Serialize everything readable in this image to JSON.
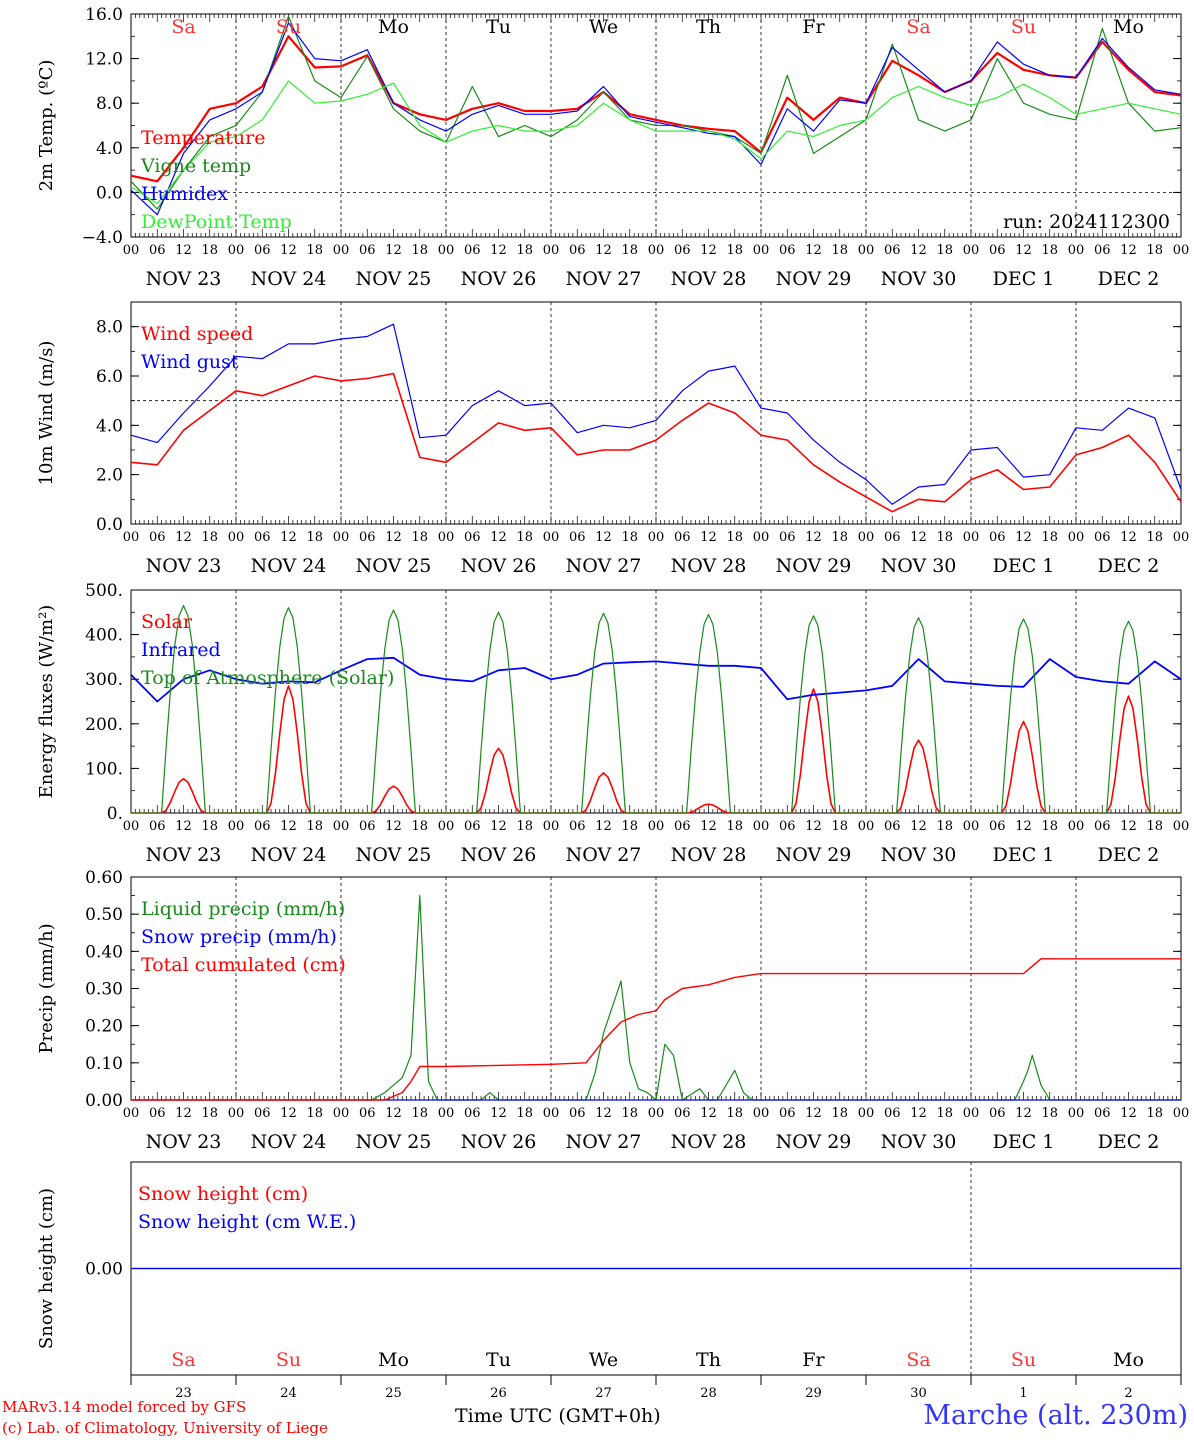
{
  "run_label": "run: 2024112300",
  "credit_line1": "MARv3.14 model forced by GFS",
  "credit_line2": "(c) Lab. of Climatology, University of Liege",
  "station": "Marche (alt. 230m)",
  "time_axis_label": "Time UTC (GMT+0h)",
  "weekdays": [
    {
      "label": "Sa",
      "color": "#ff3333"
    },
    {
      "label": "Su",
      "color": "#ff3333"
    },
    {
      "label": "Mo",
      "color": "#000000"
    },
    {
      "label": "Tu",
      "color": "#000000"
    },
    {
      "label": "We",
      "color": "#000000"
    },
    {
      "label": "Th",
      "color": "#000000"
    },
    {
      "label": "Fr",
      "color": "#000000"
    },
    {
      "label": "Sa",
      "color": "#ff3333"
    },
    {
      "label": "Su",
      "color": "#ff3333"
    },
    {
      "label": "Mo",
      "color": "#000000"
    }
  ],
  "date_labels": [
    "NOV 23",
    "NOV 24",
    "NOV 25",
    "NOV 26",
    "NOV 27",
    "NOV 28",
    "NOV 29",
    "NOV 30",
    "DEC  1",
    "DEC  2"
  ],
  "day_numbers": [
    "23",
    "24",
    "25",
    "26",
    "27",
    "28",
    "29",
    "30",
    "1",
    "2"
  ],
  "hour_ticks": [
    "00",
    "06",
    "12",
    "18"
  ],
  "chart_data": [
    {
      "type": "line",
      "ylabel": "2m Temp. (ºC)",
      "ylim": [
        -4,
        16
      ],
      "yticks": [
        "−4.0",
        "0.0",
        "4.0",
        "8.0",
        "12.0",
        "16.0"
      ],
      "ytick_values": [
        -4,
        0,
        4,
        8,
        12,
        16
      ],
      "reference_line": 0,
      "x_unit": "hours since 2024-11-23 00 UTC",
      "xlim": [
        0,
        240
      ],
      "series": [
        {
          "name": "Temperature",
          "color": "#ff0000",
          "width": 2.2,
          "x": [
            0,
            6,
            12,
            18,
            24,
            30,
            36,
            42,
            48,
            54,
            60,
            66,
            72,
            78,
            84,
            90,
            96,
            102,
            108,
            114,
            120,
            126,
            132,
            138,
            144,
            150,
            156,
            162,
            168,
            174,
            180,
            186,
            192,
            198,
            204,
            210,
            216,
            222,
            228,
            234,
            240
          ],
          "y": [
            1.5,
            1.0,
            4.0,
            7.5,
            8.0,
            9.5,
            14.0,
            11.2,
            11.3,
            12.3,
            8.0,
            7.0,
            6.5,
            7.5,
            8.0,
            7.3,
            7.3,
            7.5,
            9.0,
            7.0,
            6.5,
            6.0,
            5.7,
            5.5,
            3.6,
            8.5,
            6.5,
            8.5,
            8.0,
            11.8,
            10.5,
            9.0,
            10.0,
            12.5,
            11.0,
            10.5,
            10.3,
            13.5,
            11.0,
            9.0,
            8.7
          ]
        },
        {
          "name": "Vigne temp",
          "color": "#1a8a1a",
          "width": 1.2,
          "x": [
            0,
            6,
            12,
            18,
            24,
            30,
            36,
            42,
            48,
            54,
            60,
            66,
            72,
            78,
            84,
            90,
            96,
            102,
            108,
            114,
            120,
            126,
            132,
            138,
            144,
            150,
            156,
            162,
            168,
            174,
            180,
            186,
            192,
            198,
            204,
            210,
            216,
            222,
            228,
            234,
            240
          ],
          "y": [
            1.0,
            -1.5,
            2.0,
            5.0,
            6.0,
            9.0,
            15.8,
            10.0,
            8.5,
            12.2,
            7.5,
            5.5,
            4.5,
            9.5,
            5.0,
            6.0,
            5.0,
            6.5,
            9.0,
            6.5,
            6.0,
            6.0,
            5.5,
            5.0,
            3.5,
            10.5,
            3.5,
            5.0,
            6.5,
            13.3,
            6.5,
            5.5,
            6.5,
            12.0,
            8.0,
            7.0,
            6.5,
            14.7,
            8.0,
            5.5,
            5.8
          ]
        },
        {
          "name": "Humidex",
          "color": "#0000ff",
          "width": 1.2,
          "x": [
            0,
            6,
            12,
            18,
            24,
            30,
            36,
            42,
            48,
            54,
            60,
            66,
            72,
            78,
            84,
            90,
            96,
            102,
            108,
            114,
            120,
            126,
            132,
            138,
            144,
            150,
            156,
            162,
            168,
            174,
            180,
            186,
            192,
            198,
            204,
            210,
            216,
            222,
            228,
            234,
            240
          ],
          "y": [
            0.2,
            -2.0,
            3.5,
            6.5,
            7.5,
            9.0,
            15.2,
            12.0,
            11.8,
            12.8,
            8.0,
            6.5,
            5.5,
            7.0,
            7.8,
            7.0,
            7.0,
            7.3,
            9.5,
            6.8,
            6.3,
            5.8,
            5.3,
            5.0,
            2.5,
            7.5,
            5.5,
            8.3,
            8.0,
            13.0,
            11.0,
            9.0,
            10.0,
            13.5,
            11.5,
            10.5,
            10.3,
            13.8,
            11.2,
            9.2,
            8.8
          ]
        },
        {
          "name": "DewPoint Temp",
          "color": "#33ee33",
          "width": 1.2,
          "x": [
            0,
            6,
            12,
            18,
            24,
            30,
            36,
            42,
            48,
            54,
            60,
            66,
            72,
            78,
            84,
            90,
            96,
            102,
            108,
            114,
            120,
            126,
            132,
            138,
            144,
            150,
            156,
            162,
            168,
            174,
            180,
            186,
            192,
            198,
            204,
            210,
            216,
            222,
            228,
            234,
            240
          ],
          "y": [
            0.5,
            -1.0,
            2.0,
            4.5,
            5.0,
            6.5,
            10.0,
            8.0,
            8.2,
            8.8,
            9.8,
            6.0,
            4.5,
            5.5,
            6.0,
            5.5,
            5.5,
            6.0,
            8.0,
            6.5,
            5.5,
            5.5,
            5.5,
            4.8,
            3.0,
            5.5,
            5.0,
            6.0,
            6.5,
            8.5,
            9.5,
            8.5,
            7.8,
            8.5,
            9.7,
            8.5,
            7.0,
            7.5,
            8.0,
            7.5,
            7.0
          ]
        }
      ]
    },
    {
      "type": "line",
      "ylabel": "10m Wind (m/s)",
      "ylim": [
        0,
        9
      ],
      "yticks": [
        "0.0",
        "2.0",
        "4.0",
        "6.0",
        "8.0"
      ],
      "ytick_values": [
        0,
        2,
        4,
        6,
        8
      ],
      "reference_line": 5,
      "x_unit": "hours since 2024-11-23 00 UTC",
      "xlim": [
        0,
        240
      ],
      "series": [
        {
          "name": "Wind speed",
          "color": "#ff0000",
          "width": 1.6,
          "x": [
            0,
            6,
            12,
            18,
            24,
            30,
            36,
            42,
            48,
            54,
            60,
            66,
            72,
            78,
            84,
            90,
            96,
            102,
            108,
            114,
            120,
            126,
            132,
            138,
            144,
            150,
            156,
            162,
            168,
            174,
            180,
            186,
            192,
            198,
            204,
            210,
            216,
            222,
            228,
            234,
            240
          ],
          "y": [
            2.5,
            2.4,
            3.8,
            4.6,
            5.4,
            5.2,
            5.6,
            6.0,
            5.8,
            5.9,
            6.1,
            2.7,
            2.5,
            3.3,
            4.1,
            3.8,
            3.9,
            2.8,
            3.0,
            3.0,
            3.4,
            4.2,
            4.9,
            4.5,
            3.6,
            3.4,
            2.4,
            1.7,
            1.1,
            0.5,
            1.0,
            0.9,
            1.8,
            2.2,
            1.4,
            1.5,
            2.8,
            3.1,
            3.6,
            2.5,
            0.9
          ]
        },
        {
          "name": "Wind gust",
          "color": "#0000ff",
          "width": 1.2,
          "x": [
            0,
            6,
            12,
            18,
            24,
            30,
            36,
            42,
            48,
            54,
            60,
            66,
            72,
            78,
            84,
            90,
            96,
            102,
            108,
            114,
            120,
            126,
            132,
            138,
            144,
            150,
            156,
            162,
            168,
            174,
            180,
            186,
            192,
            198,
            204,
            210,
            216,
            222,
            228,
            234,
            240
          ],
          "y": [
            3.6,
            3.3,
            4.5,
            5.6,
            6.8,
            6.7,
            7.3,
            7.3,
            7.5,
            7.6,
            8.1,
            3.5,
            3.6,
            4.8,
            5.4,
            4.8,
            4.9,
            3.7,
            4.0,
            3.9,
            4.2,
            5.4,
            6.2,
            6.4,
            4.7,
            4.5,
            3.4,
            2.5,
            1.8,
            0.8,
            1.5,
            1.6,
            3.0,
            3.1,
            1.9,
            2.0,
            3.9,
            3.8,
            4.7,
            4.3,
            1.4
          ]
        }
      ]
    },
    {
      "type": "line",
      "ylabel": "Energy fluxes (W/m²)",
      "ylim": [
        0,
        500
      ],
      "yticks": [
        "0.",
        "100.",
        "200.",
        "300.",
        "400.",
        "500."
      ],
      "ytick_values": [
        0,
        100,
        200,
        300,
        400,
        500
      ],
      "x_unit": "hours since 2024-11-23 00 UTC",
      "xlim": [
        0,
        240
      ],
      "series": [
        {
          "name": "Solar",
          "color": "#ff0000",
          "width": 1.6,
          "daily_peaks": [
            77,
            285,
            60,
            145,
            90,
            20,
            278,
            163,
            205,
            262
          ]
        },
        {
          "name": "Infrared",
          "color": "#0000ff",
          "width": 1.8,
          "x": [
            0,
            6,
            12,
            18,
            24,
            30,
            36,
            42,
            48,
            54,
            60,
            66,
            72,
            78,
            84,
            90,
            96,
            102,
            108,
            114,
            120,
            126,
            132,
            138,
            144,
            150,
            156,
            162,
            168,
            174,
            180,
            186,
            192,
            198,
            204,
            210,
            216,
            222,
            228,
            234,
            240
          ],
          "y": [
            310,
            250,
            300,
            320,
            300,
            290,
            295,
            293,
            320,
            345,
            348,
            310,
            300,
            295,
            320,
            325,
            300,
            310,
            335,
            338,
            340,
            335,
            330,
            330,
            325,
            255,
            265,
            270,
            275,
            285,
            345,
            295,
            290,
            285,
            283,
            345,
            305,
            295,
            290,
            340,
            300
          ]
        },
        {
          "name": "Top of Atmosphere (Solar)",
          "color": "#1a8a1a",
          "width": 1.2,
          "daily_peaks": [
            465,
            460,
            455,
            450,
            448,
            445,
            442,
            438,
            435,
            430
          ]
        }
      ]
    },
    {
      "type": "line",
      "ylabel": "Precip (mm/h)",
      "ylim": [
        0,
        0.6
      ],
      "yticks": [
        "0.00",
        "0.10",
        "0.20",
        "0.30",
        "0.40",
        "0.50",
        "0.60"
      ],
      "ytick_values": [
        0,
        0.1,
        0.2,
        0.3,
        0.4,
        0.5,
        0.6
      ],
      "x_unit": "hours since 2024-11-23 00 UTC",
      "xlim": [
        0,
        240
      ],
      "series": [
        {
          "name": "Liquid precip (mm/h)",
          "color": "#1a8a1a",
          "width": 1.2,
          "x": [
            0,
            55,
            58,
            62,
            64,
            66,
            68,
            70,
            80,
            82,
            84,
            104,
            106,
            108,
            112,
            114,
            116,
            118,
            120,
            122,
            124,
            126,
            130,
            132,
            134,
            138,
            140,
            142,
            202,
            204,
            205,
            206,
            207,
            208,
            210,
            240
          ],
          "y": [
            0,
            0,
            0.02,
            0.06,
            0.12,
            0.55,
            0.05,
            0,
            0,
            0.02,
            0,
            0,
            0.07,
            0.18,
            0.32,
            0.1,
            0.03,
            0.02,
            0,
            0.15,
            0.12,
            0,
            0.03,
            0.0,
            0,
            0.08,
            0.02,
            0,
            0,
            0.05,
            0.08,
            0.12,
            0.08,
            0.04,
            0,
            0
          ]
        },
        {
          "name": "Snow precip (mm/h)",
          "color": "#0000ff",
          "width": 1.2,
          "x": [
            0,
            240
          ],
          "y": [
            0,
            0
          ]
        },
        {
          "name": "Total cumulated (cm)",
          "color": "#ff0000",
          "width": 1.4,
          "x": [
            0,
            58,
            62,
            64,
            66,
            72,
            96,
            104,
            108,
            112,
            116,
            120,
            122,
            126,
            132,
            138,
            144,
            150,
            162,
            204,
            206,
            208,
            240
          ],
          "y": [
            0,
            0,
            0.02,
            0.05,
            0.09,
            0.09,
            0.096,
            0.1,
            0.16,
            0.21,
            0.23,
            0.24,
            0.27,
            0.3,
            0.31,
            0.33,
            0.34,
            0.34,
            0.34,
            0.34,
            0.36,
            0.38,
            0.38
          ]
        }
      ]
    },
    {
      "type": "line",
      "ylabel": "Snow height (cm)",
      "ylim": [
        -1,
        1
      ],
      "yticks": [
        "0.00"
      ],
      "ytick_values": [
        0
      ],
      "x_unit": "hours since 2024-11-23 00 UTC",
      "xlim": [
        0,
        240
      ],
      "series": [
        {
          "name": "Snow height (cm)",
          "color": "#ff0000",
          "width": 1.2,
          "x": [
            0,
            240
          ],
          "y": [
            0,
            0
          ]
        },
        {
          "name": "Snow height (cm W.E.)",
          "color": "#0000ff",
          "width": 1.2,
          "x": [
            0,
            240
          ],
          "y": [
            0,
            0
          ]
        }
      ]
    }
  ]
}
